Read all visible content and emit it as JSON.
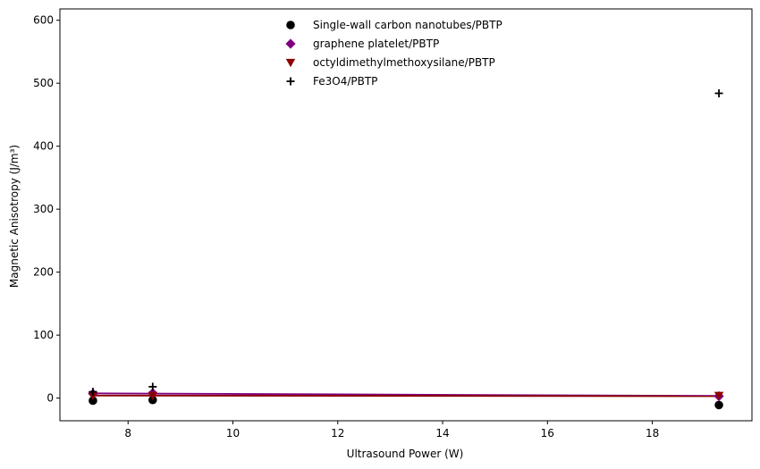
{
  "chart_data": {
    "type": "scatter",
    "title": "",
    "xlabel": "Ultrasound Power (W)",
    "ylabel": "Magnetic Anisotropy (J/m³)",
    "xlim": [
      6.7,
      19.9
    ],
    "ylim": [
      -36,
      618
    ],
    "xticks": [
      8,
      10,
      12,
      14,
      16,
      18
    ],
    "yticks": [
      0,
      100,
      200,
      300,
      400,
      500,
      600
    ],
    "grid": false,
    "legend_position": "top-center",
    "series": [
      {
        "name": "Single-wall carbon nanotubes/PBTP",
        "marker": "circle",
        "color": "#000000",
        "x": [
          7.33,
          8.47,
          19.27
        ],
        "y": [
          -4,
          -3,
          -11
        ],
        "fit_line": null
      },
      {
        "name": "graphene platelet/PBTP",
        "marker": "diamond",
        "color": "#800080",
        "x": [
          7.33,
          8.47,
          19.27
        ],
        "y": [
          7,
          8,
          3
        ],
        "fit_line": {
          "x": [
            7.33,
            19.27
          ],
          "y": [
            7.5,
            3.5
          ]
        }
      },
      {
        "name": "octyldimethylmethoxysilane/PBTP",
        "marker": "triangle-down",
        "color": "#8b0000",
        "x": [
          7.33,
          8.47,
          19.27
        ],
        "y": [
          4,
          4,
          4
        ],
        "fit_line": {
          "x": [
            7.33,
            19.27
          ],
          "y": [
            4,
            3
          ]
        }
      },
      {
        "name": "Fe3O4/PBTP",
        "marker": "plus",
        "color": "#000000",
        "x": [
          7.33,
          8.47,
          19.27
        ],
        "y": [
          10,
          18,
          484
        ],
        "fit_line": null
      }
    ]
  }
}
